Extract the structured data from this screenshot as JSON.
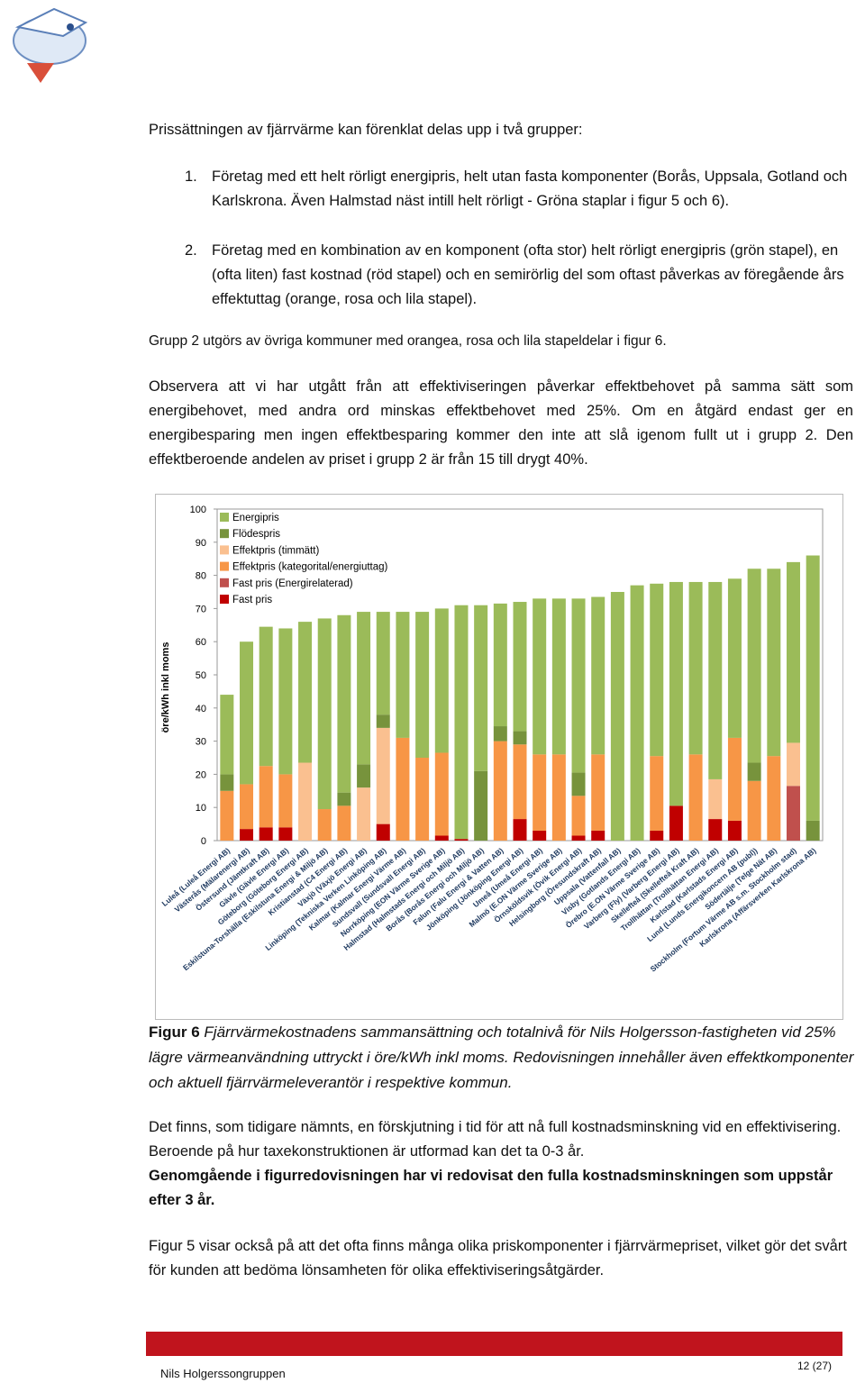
{
  "intro": "Prissättningen av fjärrvärme kan förenklat delas upp i två grupper:",
  "list": [
    {
      "number": "1.",
      "text": "Företag med ett helt rörligt energipris, helt utan fasta komponenter (Borås, Uppsala, Gotland och Karlskrona. Även Halmstad näst intill helt rörligt - Gröna staplar i figur 5 och 6)."
    },
    {
      "number": "2.",
      "text": "Företag med en kombination av en komponent (ofta stor) helt rörligt energipris (grön stapel), en (ofta liten) fast kostnad (röd stapel) och en semirörlig del som oftast påverkas av föregående års effektuttag (orange, rosa och lila stapel)."
    }
  ],
  "group_note": "Grupp 2 utgörs av övriga kommuner med orangea, rosa och lila stapeldelar i figur 6.",
  "paragraph_observe": "Observera att vi har utgått från att effektiviseringen påverkar effektbehovet på samma sätt som energibehovet, med andra ord minskas effektbehovet med 25%. Om en åtgärd endast ger en energibesparing men ingen effektbesparing kommer den inte att slå igenom fullt ut i grupp 2. Den effektberoende andelen av priset i grupp 2 är från 15 till drygt 40%.",
  "chart_data": {
    "type": "stacked-bar",
    "y_label": "öre/kWh inkl moms",
    "ylim": [
      0,
      100
    ],
    "yticks": [
      0,
      10,
      20,
      30,
      40,
      50,
      60,
      70,
      80,
      90,
      100
    ],
    "grid": false,
    "legend": "top-left",
    "categories": [
      "Luleå (Luleå Energi AB)",
      "Västerås (Mälarenergi AB)",
      "Östersund (Jämtkraft AB)",
      "Gävle (Gävle Energi AB)",
      "Göteborg (Göteborg Energi AB)",
      "Eskilstuna-Torshälla (Eskilstuna Energi & Miljö AB)",
      "Kristianstad (C4 Energi AB)",
      "Växjö (Växjö Energi AB)",
      "Linköping (Tekniska Verken Linköping AB)",
      "Kalmar (Kalmar Energi Värme AB)",
      "Sundsvall (Sundsvall Energi AB)",
      "Norrköping (EON Värme Sverige AB)",
      "Halmstad (Halmstads Energi och Miljö AB)",
      "Borås (Borås Energi och Miljö AB)",
      "Falun (Falu Energi & Vatten AB)",
      "Jönköping (Jönköping Energi AB)",
      "Umeå (Umeå Energi AB)",
      "Malmö (E.ON Värme Sverige AB)",
      "Örnsköldsvik (Övik Energi AB)",
      "Helsingborg (Öresundskraft AB)",
      "Uppsala (Vattenfall AB)",
      "Visby (Gotlands Energi AB)",
      "Örebro (E.ON Värme Sverige AB)",
      "Varberg (Fly) (Varberg Energi AB)",
      "Skellefteå (Skellefteå Kraft AB)",
      "Trollhättan (Trollhättan Energi AB)",
      "Karlstad (Karlstads Energi AB)",
      "Lund (Lunds Energikoncern AB (publ))",
      "Södertälje (Telge Nät AB)",
      "Stockholm (Fortum Värme AB s.m. Stockholm stad)",
      "Karlskrona (Affärsverken Karlskrona AB)"
    ],
    "series": [
      {
        "name": "Energipris",
        "color": "#9bbb59",
        "values": [
          24,
          43,
          42,
          44,
          42.5,
          57.5,
          53.5,
          46,
          31,
          38,
          44,
          43.5,
          70.5,
          50,
          37,
          39,
          47,
          47,
          52.5,
          47.5,
          75,
          77,
          52,
          67.5,
          52,
          59.5,
          48,
          58.5,
          56.5,
          54.5,
          80
        ]
      },
      {
        "name": "Flödespris",
        "color": "#77933c",
        "values": [
          5,
          0,
          0,
          0,
          0,
          0,
          4,
          7,
          4,
          0,
          0,
          0,
          0,
          21,
          4.5,
          4,
          0,
          0,
          7,
          0,
          0,
          0,
          0,
          0,
          0,
          0,
          0,
          5.5,
          0,
          0,
          6
        ]
      },
      {
        "name": "Effektpris (timmätt)",
        "color": "#fac090",
        "values": [
          0,
          0,
          0,
          0,
          23.5,
          0,
          0,
          16,
          29,
          0,
          0,
          0,
          0,
          0,
          0,
          0,
          0,
          0,
          0,
          0,
          0,
          0,
          0,
          0,
          0,
          12,
          0,
          0,
          0,
          13,
          0
        ]
      },
      {
        "name": "Effektpris (kategorital/energiuttag)",
        "color": "#f79646",
        "values": [
          15,
          13.5,
          18.5,
          16,
          0,
          9.5,
          10.5,
          0,
          0,
          31,
          25,
          25,
          0,
          0,
          30,
          22.5,
          23,
          26,
          12,
          23,
          0,
          0,
          22.5,
          0,
          26,
          0,
          25,
          18,
          25.5,
          0,
          0
        ]
      },
      {
        "name": "Fast pris (Energirelaterad)",
        "color": "#c0504d",
        "values": [
          0,
          0,
          0,
          0,
          0,
          0,
          0,
          0,
          0,
          0,
          0,
          0,
          0,
          0,
          0,
          0,
          0,
          0,
          0,
          0,
          0,
          0,
          0,
          0,
          0,
          0,
          0,
          0,
          0,
          16.5,
          0
        ]
      },
      {
        "name": "Fast pris",
        "color": "#c00000",
        "values": [
          0,
          3.5,
          4,
          4,
          0,
          0,
          0,
          0,
          5,
          0,
          0,
          1.5,
          0.5,
          0,
          0,
          6.5,
          3,
          0,
          1.5,
          3,
          0,
          0,
          3,
          10.5,
          0,
          6.5,
          6,
          0,
          0,
          0,
          0
        ]
      }
    ]
  },
  "caption": {
    "label": "Figur 6",
    "text": "Fjärrvärmekostnadens sammansättning och totalnivå för Nils Holgersson-fastigheten vid 25% lägre värmeanvändning uttryckt i öre/kWh inkl moms. Redovisningen innehåller även effektkomponenter och aktuell fjärrvärmeleverantör i respektive kommun."
  },
  "paragraph_shift": "Det finns, som tidigare nämnts, en förskjutning i tid för att nå full kostnadsminskning vid en effektivisering. Beroende på hur taxekonstruktionen är utformad kan det ta 0-3 år.",
  "paragraph_shift_bold": "Genomgående i figurredovisningen har vi redovisat den fulla kostnadsminskningen som uppstår efter 3 år.",
  "paragraph_fig5": "Figur 5 visar också på att det ofta finns många olika priskomponenter i fjärrvärmepriset, vilket gör det svårt för kunden att bedöma lönsamheten för olika effektiviseringsåtgärder.",
  "footer": {
    "organization": "Nils Holgerssongruppen",
    "page": "12 (27)"
  }
}
